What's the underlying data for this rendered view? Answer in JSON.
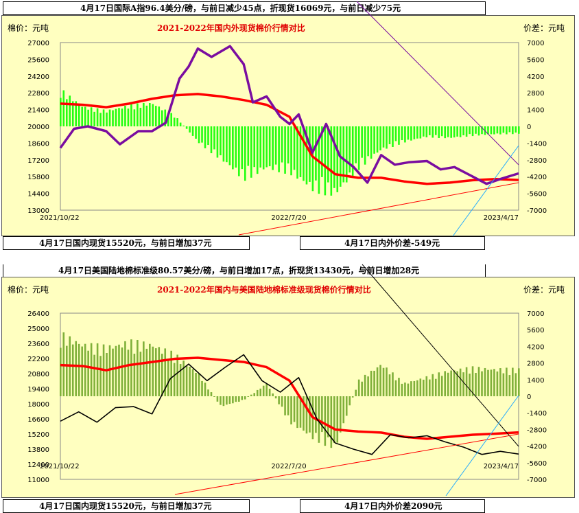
{
  "headers": {
    "top1": "4月17日国际A指96.4美分/磅，与前日减少45点，折现货16069元，与前日减少75元",
    "top2": "4月17日国内现货15520元，与前日增加37元",
    "top3": "4月17日内外价差-549元",
    "mid1": "4月17日美国陆地棉标准级80.57美分/磅，与前日增加17点，折现货13430元，与前日增加28元",
    "bot1": "4月17日国内现货15520元，与前日增加37元",
    "bot2": "4月17日内外价差2090元"
  },
  "colors": {
    "domestic": "#ff0000",
    "foreign1": "#7a0da0",
    "foreign2": "#000000",
    "spread1": "#22ff11",
    "spread2": "#7fb03a"
  },
  "chart_data": [
    {
      "type": "line",
      "title": "2021-2022年国内外现货棉价行情对比",
      "ylabel": "棉价：元吨",
      "y2label": "价差：元吨",
      "ylim": [
        13000,
        27000
      ],
      "y2lim": [
        -7000,
        7000
      ],
      "yticks": [
        "27000",
        "25600",
        "24200",
        "22800",
        "21400",
        "20000",
        "18600",
        "17200",
        "15800",
        "14400",
        "13000"
      ],
      "y2ticks": [
        "7000",
        "5600",
        "4200",
        "2800",
        "1400",
        "0",
        "-1400",
        "-2800",
        "-4200",
        "-5600",
        "-7000"
      ],
      "xticks": [
        "2021/10/22",
        "2022/7/20",
        "2023/4/17"
      ],
      "series": [
        {
          "key": "domestic",
          "x": [
            0,
            0.05,
            0.1,
            0.15,
            0.2,
            0.25,
            0.3,
            0.35,
            0.4,
            0.45,
            0.5,
            0.55,
            0.6,
            0.65,
            0.7,
            0.75,
            0.8,
            0.85,
            0.9,
            0.95,
            1
          ],
          "values": [
            21900,
            21800,
            21600,
            21900,
            22300,
            22600,
            22700,
            22500,
            22200,
            21800,
            20800,
            17500,
            16000,
            15700,
            15700,
            15400,
            15200,
            15300,
            15500,
            15600,
            15520
          ]
        },
        {
          "key": "foreign1",
          "x": [
            0,
            0.03,
            0.06,
            0.1,
            0.13,
            0.17,
            0.2,
            0.23,
            0.26,
            0.28,
            0.3,
            0.33,
            0.37,
            0.4,
            0.42,
            0.45,
            0.48,
            0.5,
            0.52,
            0.55,
            0.58,
            0.61,
            0.64,
            0.67,
            0.7,
            0.73,
            0.76,
            0.8,
            0.83,
            0.86,
            0.9,
            0.93,
            0.96,
            1
          ],
          "values": [
            18200,
            19800,
            20000,
            19600,
            18500,
            19600,
            19600,
            20300,
            24000,
            25000,
            26500,
            25800,
            26700,
            25200,
            22000,
            22500,
            20800,
            20200,
            21000,
            17800,
            20200,
            17500,
            16600,
            15300,
            17600,
            16800,
            17000,
            17100,
            16400,
            16600,
            15800,
            15200,
            15600,
            16069
          ]
        },
        {
          "key": "spread1",
          "x": [
            0,
            0.05,
            0.1,
            0.15,
            0.2,
            0.25,
            0.3,
            0.35,
            0.4,
            0.45,
            0.5,
            0.55,
            0.6,
            0.65,
            0.7,
            0.75,
            0.8,
            0.85,
            0.9,
            0.95,
            1
          ],
          "values": [
            2800,
            1500,
            1200,
            1600,
            1800,
            800,
            -1200,
            -2500,
            -4000,
            -3200,
            -3500,
            -4800,
            -5200,
            -3200,
            -1800,
            -1200,
            -800,
            -900,
            -700,
            -600,
            -549
          ]
        }
      ]
    },
    {
      "type": "line",
      "title": "2021-2022年国内与美国陆地棉标准级现货棉价行情对比",
      "ylabel": "棉价：元吨",
      "y2label": "价差：元吨",
      "ylim": [
        11000,
        27000
      ],
      "y2lim": [
        -7000,
        7000
      ],
      "yticks": [
        "26400",
        "25000",
        "23600",
        "22200",
        "20800",
        "19400",
        "18000",
        "16600",
        "15200",
        "13800",
        "12400",
        "11000"
      ],
      "y2ticks": [
        "7000",
        "5600",
        "4200",
        "2800",
        "1400",
        "0",
        "-1400",
        "-2800",
        "-4200",
        "-5600",
        "-7000"
      ],
      "xticks": [
        "2021/10/22",
        "2022/7/20",
        "2023/4/17"
      ],
      "series": [
        {
          "key": "domestic",
          "x": [
            0,
            0.05,
            0.1,
            0.15,
            0.2,
            0.25,
            0.3,
            0.35,
            0.4,
            0.45,
            0.5,
            0.55,
            0.6,
            0.65,
            0.7,
            0.75,
            0.8,
            0.85,
            0.9,
            0.95,
            1
          ],
          "values": [
            22000,
            21900,
            21500,
            22000,
            22300,
            22600,
            22700,
            22500,
            22300,
            21800,
            20500,
            17000,
            15800,
            15600,
            15500,
            15100,
            14900,
            15100,
            15300,
            15400,
            15520
          ]
        },
        {
          "key": "foreign2",
          "x": [
            0,
            0.04,
            0.08,
            0.12,
            0.16,
            0.2,
            0.24,
            0.28,
            0.32,
            0.36,
            0.4,
            0.44,
            0.48,
            0.52,
            0.56,
            0.6,
            0.64,
            0.68,
            0.72,
            0.76,
            0.8,
            0.84,
            0.88,
            0.92,
            0.96,
            1
          ],
          "values": [
            16600,
            17500,
            16500,
            17900,
            18000,
            17300,
            20700,
            22100,
            20500,
            21800,
            23000,
            20500,
            19400,
            20800,
            16800,
            14500,
            13900,
            13400,
            15300,
            15000,
            15200,
            14600,
            14100,
            13400,
            13700,
            13430
          ]
        },
        {
          "key": "spread2",
          "x": [
            0,
            0.05,
            0.1,
            0.15,
            0.2,
            0.25,
            0.3,
            0.35,
            0.4,
            0.45,
            0.5,
            0.55,
            0.6,
            0.65,
            0.7,
            0.75,
            0.8,
            0.85,
            0.9,
            0.95,
            1
          ],
          "values": [
            4800,
            4000,
            3800,
            4200,
            4000,
            3200,
            1800,
            -800,
            -300,
            1000,
            -2000,
            -3200,
            -4000,
            1200,
            2500,
            1000,
            1500,
            2000,
            2200,
            2100,
            2090
          ]
        }
      ]
    }
  ]
}
